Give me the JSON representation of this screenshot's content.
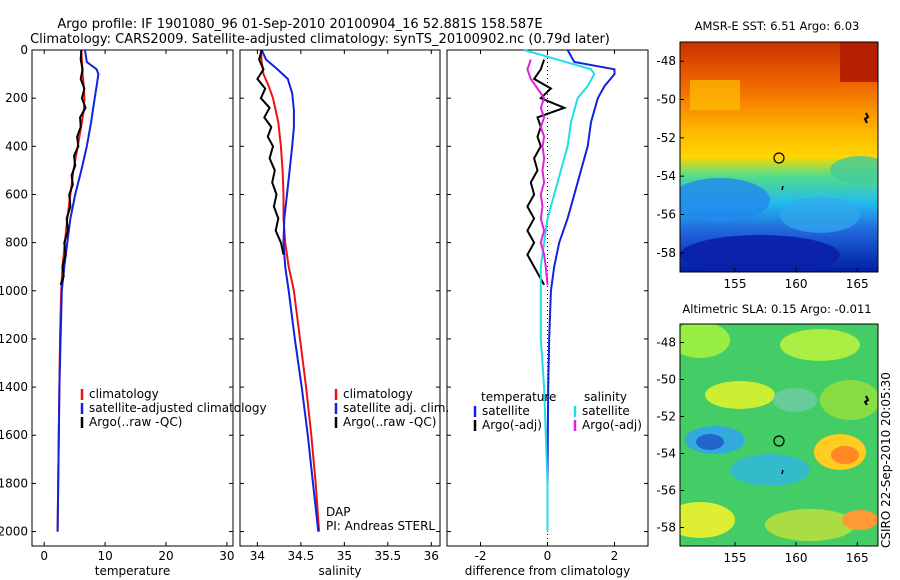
{
  "header": {
    "line1": "Argo profile: IF 1901080_96 01-Sep-2010 20100904_16 52.881S 158.587E",
    "line2": "Climatology: CARS2009. Satellite-adjusted climatology: synTS_20100902.nc (0.79d later)"
  },
  "credits": {
    "dap": "DAP",
    "pi": "PI: Andreas STERL",
    "stamp": "CSIRO 22-Sep-2010 20:05:30"
  },
  "colors": {
    "climatology": "#ee1111",
    "satellite": "#1122dd",
    "argo": "#000000",
    "sat_diff_sal": "#22dde8",
    "argo_diff_sal": "#dd22dd"
  },
  "chart_data": [
    {
      "type": "line",
      "xlabel": "temperature",
      "xlim": [
        -2,
        31
      ],
      "ylim": [
        2060,
        0
      ],
      "x_ticks": [
        "0",
        "10",
        "20",
        "30"
      ],
      "x_tick_values": [
        0,
        10,
        20,
        30
      ],
      "y_ticks": [
        "0",
        "200",
        "400",
        "600",
        "800",
        "1000",
        "1200",
        "1400",
        "1600",
        "1800",
        "2000"
      ],
      "y_tick_values": [
        0,
        200,
        400,
        600,
        800,
        1000,
        1200,
        1400,
        1600,
        1800,
        2000
      ],
      "legend": [
        "climatology",
        "satellite-adjusted climatology",
        "Argo(..raw -QC)"
      ],
      "series": [
        {
          "name": "climatology",
          "color": "#ee1111",
          "points": [
            [
              6.1,
              0
            ],
            [
              6.2,
              50
            ],
            [
              6.3,
              100
            ],
            [
              6.5,
              150
            ],
            [
              6.6,
              200
            ],
            [
              6.5,
              250
            ],
            [
              6.2,
              300
            ],
            [
              5.5,
              400
            ],
            [
              4.8,
              500
            ],
            [
              4.3,
              600
            ],
            [
              3.8,
              700
            ],
            [
              3.4,
              800
            ],
            [
              3.0,
              900
            ],
            [
              2.8,
              1000
            ],
            [
              2.6,
              1200
            ],
            [
              2.5,
              1400
            ],
            [
              2.4,
              1600
            ],
            [
              2.3,
              1800
            ],
            [
              2.2,
              2000
            ]
          ]
        },
        {
          "name": "satellite-adjusted climatology",
          "color": "#1122dd",
          "points": [
            [
              6.7,
              0
            ],
            [
              7.0,
              50
            ],
            [
              8.6,
              80
            ],
            [
              8.9,
              100
            ],
            [
              8.6,
              150
            ],
            [
              8.3,
              200
            ],
            [
              8.0,
              250
            ],
            [
              7.7,
              300
            ],
            [
              7.0,
              400
            ],
            [
              6.1,
              500
            ],
            [
              5.1,
              600
            ],
            [
              4.3,
              700
            ],
            [
              3.8,
              800
            ],
            [
              3.3,
              900
            ],
            [
              2.9,
              1000
            ],
            [
              2.7,
              1200
            ],
            [
              2.5,
              1400
            ],
            [
              2.4,
              1600
            ],
            [
              2.3,
              1800
            ],
            [
              2.2,
              2000
            ]
          ]
        },
        {
          "name": "Argo(..raw -QC)",
          "color": "#000000",
          "points": [
            [
              6.1,
              0
            ],
            [
              6.0,
              40
            ],
            [
              6.3,
              80
            ],
            [
              6.0,
              120
            ],
            [
              6.6,
              160
            ],
            [
              6.2,
              200
            ],
            [
              6.8,
              240
            ],
            [
              5.9,
              280
            ],
            [
              6.0,
              320
            ],
            [
              5.4,
              360
            ],
            [
              5.6,
              400
            ],
            [
              4.9,
              440
            ],
            [
              5.1,
              480
            ],
            [
              4.5,
              520
            ],
            [
              4.7,
              560
            ],
            [
              4.1,
              600
            ],
            [
              4.3,
              650
            ],
            [
              3.7,
              700
            ],
            [
              3.9,
              750
            ],
            [
              3.3,
              800
            ],
            [
              3.5,
              850
            ],
            [
              3.0,
              900
            ],
            [
              3.2,
              940
            ],
            [
              2.7,
              975
            ]
          ]
        }
      ]
    },
    {
      "type": "line",
      "xlabel": "salinity",
      "xlim": [
        33.8,
        36.1
      ],
      "ylim": [
        2060,
        0
      ],
      "x_ticks": [
        "34",
        "34.5",
        "35",
        "35.5",
        "36"
      ],
      "x_tick_values": [
        34,
        34.5,
        35,
        35.5,
        36
      ],
      "legend": [
        "climatology",
        "satellite adj. clim.",
        "Argo(..raw -QC)"
      ],
      "series": [
        {
          "name": "climatology",
          "color": "#ee1111",
          "points": [
            [
              34.04,
              0
            ],
            [
              34.05,
              50
            ],
            [
              34.07,
              100
            ],
            [
              34.13,
              150
            ],
            [
              34.18,
              200
            ],
            [
              34.21,
              250
            ],
            [
              34.24,
              300
            ],
            [
              34.27,
              400
            ],
            [
              34.29,
              500
            ],
            [
              34.3,
              600
            ],
            [
              34.3,
              700
            ],
            [
              34.32,
              800
            ],
            [
              34.36,
              900
            ],
            [
              34.42,
              1000
            ],
            [
              34.49,
              1200
            ],
            [
              34.56,
              1400
            ],
            [
              34.62,
              1600
            ],
            [
              34.67,
              1800
            ],
            [
              34.71,
              2000
            ]
          ]
        },
        {
          "name": "satellite adj. clim.",
          "color": "#1122dd",
          "points": [
            [
              34.05,
              0
            ],
            [
              34.1,
              40
            ],
            [
              34.23,
              80
            ],
            [
              34.35,
              120
            ],
            [
              34.4,
              180
            ],
            [
              34.42,
              250
            ],
            [
              34.42,
              320
            ],
            [
              34.4,
              400
            ],
            [
              34.37,
              500
            ],
            [
              34.34,
              600
            ],
            [
              34.31,
              700
            ],
            [
              34.3,
              800
            ],
            [
              34.32,
              900
            ],
            [
              34.36,
              1000
            ],
            [
              34.43,
              1200
            ],
            [
              34.51,
              1400
            ],
            [
              34.58,
              1600
            ],
            [
              34.64,
              1800
            ],
            [
              34.7,
              2000
            ]
          ]
        },
        {
          "name": "Argo(..raw -QC)",
          "color": "#000000",
          "points": [
            [
              34.05,
              0
            ],
            [
              34.02,
              40
            ],
            [
              34.07,
              80
            ],
            [
              34.0,
              120
            ],
            [
              34.09,
              160
            ],
            [
              34.04,
              200
            ],
            [
              34.14,
              240
            ],
            [
              34.08,
              280
            ],
            [
              34.16,
              320
            ],
            [
              34.12,
              360
            ],
            [
              34.18,
              400
            ],
            [
              34.14,
              450
            ],
            [
              34.2,
              500
            ],
            [
              34.17,
              550
            ],
            [
              34.22,
              600
            ],
            [
              34.19,
              650
            ],
            [
              34.24,
              700
            ],
            [
              34.21,
              750
            ],
            [
              34.27,
              800
            ],
            [
              34.3,
              850
            ]
          ]
        }
      ]
    },
    {
      "type": "line",
      "xlabel": "difference from climatology",
      "xlim": [
        -3,
        3
      ],
      "ylim": [
        2060,
        0
      ],
      "x_ticks": [
        "-2",
        "0",
        "2"
      ],
      "x_tick_values": [
        -2,
        0,
        2
      ],
      "legend": [
        "temperature",
        "satellite",
        "Argo(-adj)",
        "salinity",
        "satellite",
        "Argo(-adj)"
      ],
      "series": [
        {
          "name": "temperature satellite",
          "color": "#1122dd",
          "points": [
            [
              0.6,
              0
            ],
            [
              0.8,
              50
            ],
            [
              2.0,
              80
            ],
            [
              2.0,
              100
            ],
            [
              1.7,
              150
            ],
            [
              1.5,
              200
            ],
            [
              1.4,
              250
            ],
            [
              1.3,
              300
            ],
            [
              1.2,
              400
            ],
            [
              1.0,
              500
            ],
            [
              0.8,
              600
            ],
            [
              0.6,
              700
            ],
            [
              0.35,
              800
            ],
            [
              0.2,
              900
            ],
            [
              0.1,
              1000
            ],
            [
              0.05,
              1200
            ],
            [
              0.02,
              1400
            ],
            [
              0.01,
              1600
            ],
            [
              0.0,
              1800
            ],
            [
              0.0,
              2000
            ]
          ]
        },
        {
          "name": "temperature Argo(-adj)",
          "color": "#000000",
          "points": [
            [
              -0.1,
              40
            ],
            [
              -0.2,
              80
            ],
            [
              -0.4,
              120
            ],
            [
              0.1,
              160
            ],
            [
              -0.2,
              200
            ],
            [
              0.5,
              240
            ],
            [
              -0.3,
              280
            ],
            [
              -0.2,
              320
            ],
            [
              -0.3,
              360
            ],
            [
              -0.2,
              400
            ],
            [
              -0.4,
              450
            ],
            [
              -0.3,
              500
            ],
            [
              -0.5,
              550
            ],
            [
              -0.4,
              600
            ],
            [
              -0.6,
              650
            ],
            [
              -0.4,
              700
            ],
            [
              -0.6,
              750
            ],
            [
              -0.4,
              800
            ],
            [
              -0.6,
              850
            ],
            [
              -0.4,
              900
            ],
            [
              -0.2,
              950
            ],
            [
              -0.1,
              975
            ]
          ]
        },
        {
          "name": "salinity satellite",
          "color": "#22dde8",
          "points": [
            [
              -0.7,
              0
            ],
            [
              0.3,
              40
            ],
            [
              1.3,
              80
            ],
            [
              1.4,
              100
            ],
            [
              1.2,
              150
            ],
            [
              0.9,
              200
            ],
            [
              0.8,
              250
            ],
            [
              0.7,
              300
            ],
            [
              0.6,
              400
            ],
            [
              0.4,
              500
            ],
            [
              0.2,
              600
            ],
            [
              0.0,
              700
            ],
            [
              -0.1,
              800
            ],
            [
              -0.2,
              900
            ],
            [
              -0.2,
              1000
            ],
            [
              -0.2,
              1200
            ],
            [
              -0.1,
              1400
            ],
            [
              -0.05,
              1600
            ],
            [
              0.0,
              1800
            ],
            [
              0.0,
              2000
            ]
          ]
        },
        {
          "name": "salinity Argo(-adj)",
          "color": "#dd22dd",
          "points": [
            [
              -0.5,
              40
            ],
            [
              -0.6,
              80
            ],
            [
              -0.5,
              120
            ],
            [
              -0.3,
              160
            ],
            [
              -0.1,
              200
            ],
            [
              -0.2,
              240
            ],
            [
              -0.1,
              280
            ],
            [
              -0.2,
              320
            ],
            [
              -0.1,
              360
            ],
            [
              -0.15,
              400
            ],
            [
              -0.1,
              450
            ],
            [
              -0.15,
              500
            ],
            [
              -0.1,
              550
            ],
            [
              -0.2,
              600
            ],
            [
              -0.15,
              650
            ],
            [
              -0.2,
              700
            ],
            [
              -0.1,
              750
            ],
            [
              -0.2,
              800
            ],
            [
              -0.1,
              850
            ],
            [
              -0.05,
              900
            ],
            [
              0.0,
              975
            ]
          ]
        }
      ]
    },
    {
      "type": "heatmap",
      "title": "AMSR-E SST: 6.51 Argo: 6.03",
      "xlim": [
        150.5,
        166.7
      ],
      "ylim": [
        -59,
        -47
      ],
      "x_ticks": [
        "155",
        "160",
        "165"
      ],
      "x_tick_values": [
        155,
        160,
        165
      ],
      "y_ticks": [
        "-48",
        "-50",
        "-52",
        "-54",
        "-56",
        "-58"
      ],
      "y_tick_values": [
        -48,
        -50,
        -52,
        -54,
        -56,
        -58
      ],
      "marker": {
        "lon": 158.6,
        "lat": -52.9
      }
    },
    {
      "type": "heatmap",
      "title": "Altimetric SLA: 0.15 Argo: -0.011",
      "xlim": [
        150.5,
        166.7
      ],
      "ylim": [
        -59,
        -47
      ],
      "x_ticks": [
        "155",
        "160",
        "165"
      ],
      "x_tick_values": [
        155,
        160,
        165
      ],
      "y_ticks": [
        "-48",
        "-50",
        "-52",
        "-54",
        "-56",
        "-58"
      ],
      "y_tick_values": [
        -48,
        -50,
        -52,
        -54,
        -56,
        -58
      ],
      "marker": {
        "lon": 158.6,
        "lat": -52.9
      }
    }
  ]
}
